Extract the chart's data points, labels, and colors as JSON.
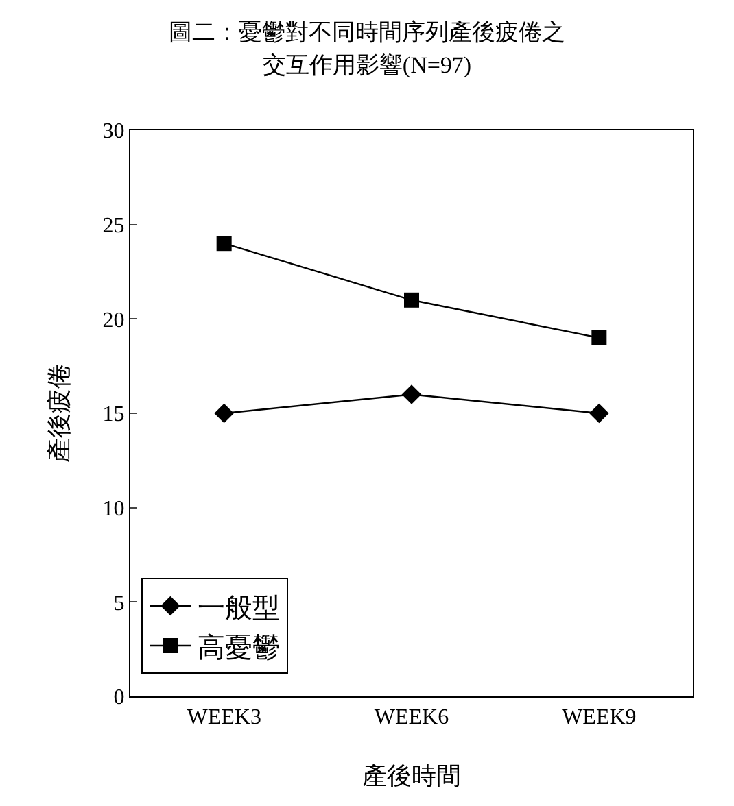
{
  "chart_data": {
    "type": "line",
    "title": "圖二：憂鬱對不同時間序列產後疲倦之交互作用影響(N=97)",
    "xlabel": "產後時間",
    "ylabel": "產後疲倦",
    "categories": [
      "WEEK3",
      "WEEK6",
      "WEEK9"
    ],
    "series": [
      {
        "name": "一般型",
        "color": "#000000",
        "marker": "diamond",
        "values": [
          15,
          16,
          15
        ]
      },
      {
        "name": "高憂鬱",
        "color": "#000000",
        "marker": "square",
        "values": [
          24,
          21,
          19
        ]
      }
    ],
    "ylim": [
      0,
      30
    ],
    "yticks": [
      0,
      5,
      10,
      15,
      20,
      25,
      30
    ],
    "grid": false,
    "legend": "bottom left",
    "line_style": "solid"
  }
}
